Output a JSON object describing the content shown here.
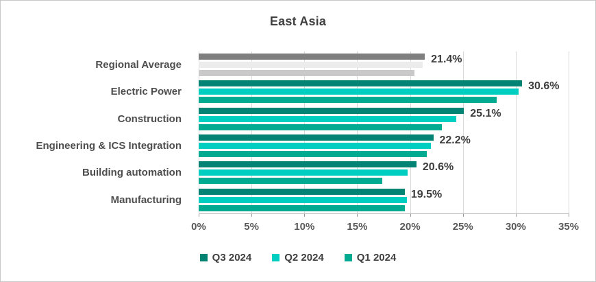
{
  "title": "East Asia",
  "colors": {
    "series": [
      "#028374",
      "#00CEC0",
      "#00AB92"
    ],
    "regional_series": [
      "#7F7F7F",
      "#ECECEC",
      "#C9C9C9"
    ],
    "gridline": "#D9D9D9",
    "axis_line": "#BFBFBF",
    "tick_mark": "#9B9B9B",
    "title_text": "#404040",
    "category_text": "#4E4E4E",
    "data_label_text": "#3D3D3D",
    "axis_label_text": "#595959",
    "frame_border": "#C9C9C9"
  },
  "chart_data": {
    "type": "bar",
    "orientation": "horizontal",
    "title": "East Asia",
    "categories": [
      "Regional Average",
      "Electric Power",
      "Construction",
      "Engineering & ICS Integration",
      "Building automation",
      "Manufacturing"
    ],
    "series": [
      {
        "name": "Q3 2024",
        "values": [
          21.4,
          30.6,
          25.1,
          22.2,
          20.6,
          19.5
        ]
      },
      {
        "name": "Q2 2024",
        "values": [
          21.2,
          30.3,
          24.4,
          22.0,
          19.8,
          19.7
        ]
      },
      {
        "name": "Q1 2024",
        "values": [
          20.4,
          28.2,
          23.0,
          21.6,
          17.4,
          19.5
        ]
      }
    ],
    "data_labels": [
      "21.4%",
      "30.6%",
      "25.1%",
      "22.2%",
      "20.6%",
      "19.5%"
    ],
    "x_axis": {
      "ticks": [
        "0%",
        "5%",
        "10%",
        "15%",
        "20%",
        "25%",
        "30%",
        "35%"
      ],
      "min": 0,
      "max": 35,
      "step": 5,
      "grid": true
    },
    "legend": {
      "position": "bottom",
      "entries": [
        "Q3 2024",
        "Q2 2024",
        "Q1 2024"
      ]
    },
    "note_first_category_gray": true
  }
}
